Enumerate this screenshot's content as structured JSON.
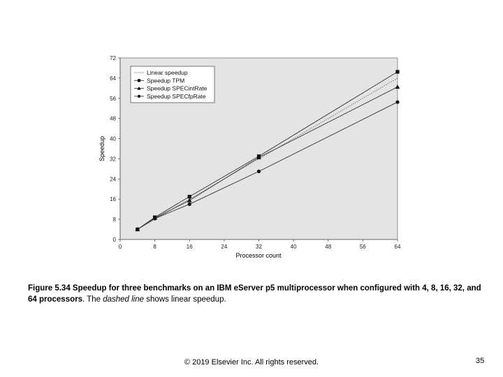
{
  "slide": {
    "caption_bold": "Figure 5.34 Speedup for three benchmarks on an IBM eServer p5 multiprocessor when configured with 4, 8, 16, 32, and 64 processors",
    "caption_rest_1": ". The ",
    "caption_italic": "dashed line",
    "caption_rest_2": " shows linear speedup.",
    "footer": "© 2019 Elsevier Inc. All rights reserved.",
    "page_number": "35"
  },
  "chart_data": {
    "type": "line",
    "xlabel": "Processor count",
    "ylabel": "Speedup",
    "xlim": [
      0,
      64
    ],
    "ylim": [
      0,
      72
    ],
    "xticks": [
      0,
      8,
      16,
      24,
      32,
      40,
      48,
      56,
      64
    ],
    "yticks": [
      0,
      8,
      16,
      24,
      32,
      40,
      48,
      56,
      64,
      72
    ],
    "grid": false,
    "legend_position": "top-left",
    "colors": {
      "plot_background": "#e4e4e4",
      "line": "#333333"
    },
    "series": [
      {
        "name": "Linear speedup",
        "style": "dotted",
        "marker": "none",
        "x": [
          4,
          64
        ],
        "y": [
          4,
          64
        ]
      },
      {
        "name": "Speedup TPM",
        "style": "solid",
        "marker": "square",
        "x": [
          4,
          8,
          16,
          32,
          64
        ],
        "y": [
          4,
          8.8,
          17,
          33,
          66.5
        ]
      },
      {
        "name": "Speedup SPECintRate",
        "style": "solid",
        "marker": "triangle",
        "x": [
          4,
          8,
          16,
          32,
          64
        ],
        "y": [
          4,
          8.5,
          15.5,
          32.5,
          60.5
        ]
      },
      {
        "name": "Speedup SPECfpRate",
        "style": "solid",
        "marker": "circle",
        "x": [
          4,
          8,
          16,
          32,
          64
        ],
        "y": [
          4,
          8.3,
          14,
          27,
          54.5
        ]
      }
    ]
  }
}
